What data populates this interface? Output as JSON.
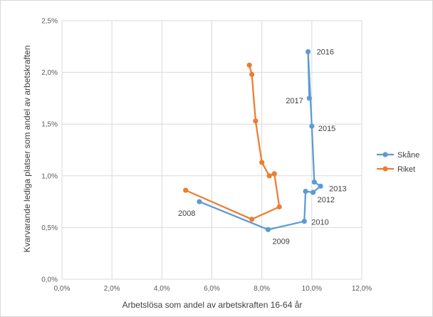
{
  "chart_data": {
    "type": "line",
    "xlabel": "Arbetslösa som andel av arbetskraften 16-64 år",
    "ylabel": "Kvarvarande lediga platser som andel av arbetskraften",
    "xlim": [
      0,
      12
    ],
    "ylim": [
      0,
      2.5
    ],
    "x_ticks": [
      "0,0%",
      "2,0%",
      "4,0%",
      "6,0%",
      "8,0%",
      "10,0%",
      "12,0%"
    ],
    "y_ticks": [
      "0,0%",
      "0,5%",
      "1,0%",
      "1,5%",
      "2,0%",
      "2,5%"
    ],
    "grid": true,
    "legend": "right",
    "series": [
      {
        "name": "Skåne",
        "color": "#5b9bd5",
        "points": [
          {
            "x": 5.5,
            "y": 0.75,
            "label": "2008"
          },
          {
            "x": 8.25,
            "y": 0.48,
            "label": "2009"
          },
          {
            "x": 9.7,
            "y": 0.56,
            "label": "2010"
          },
          {
            "x": 9.75,
            "y": 0.85,
            "label": ""
          },
          {
            "x": 10.05,
            "y": 0.84,
            "label": "2012"
          },
          {
            "x": 10.35,
            "y": 0.9,
            "label": "2013"
          },
          {
            "x": 10.1,
            "y": 0.94,
            "label": ""
          },
          {
            "x": 10.0,
            "y": 1.48,
            "label": "2015"
          },
          {
            "x": 9.85,
            "y": 2.2,
            "label": "2016"
          },
          {
            "x": 9.9,
            "y": 1.75,
            "label": "2017"
          }
        ]
      },
      {
        "name": "Riket",
        "color": "#ed7d31",
        "points": [
          {
            "x": 4.95,
            "y": 0.86
          },
          {
            "x": 7.6,
            "y": 0.58
          },
          {
            "x": 8.7,
            "y": 0.7
          },
          {
            "x": 8.5,
            "y": 1.02
          },
          {
            "x": 8.3,
            "y": 1.0
          },
          {
            "x": 8.0,
            "y": 1.13
          },
          {
            "x": 7.75,
            "y": 1.53
          },
          {
            "x": 7.6,
            "y": 1.98
          },
          {
            "x": 7.5,
            "y": 2.07
          }
        ]
      }
    ]
  }
}
